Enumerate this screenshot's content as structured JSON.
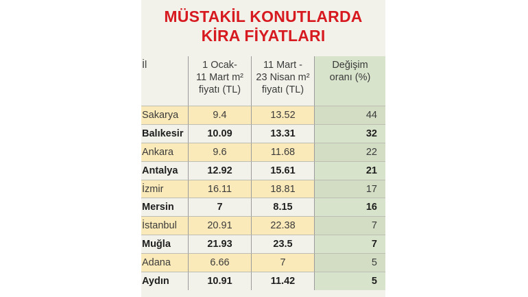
{
  "chart_data": {
    "type": "table",
    "title": [
      "MÜSTAKİL KONUTLARDA",
      "KİRA FİYATLARI"
    ],
    "columns": [
      {
        "label": "İl"
      },
      {
        "label": [
          "1 Ocak-",
          "11 Mart m²",
          "fiyatı (TL)"
        ]
      },
      {
        "label": [
          "11 Mart -",
          "23 Nisan m²",
          "fiyatı (TL)"
        ]
      },
      {
        "label": [
          "Değişim",
          "oranı (%)"
        ]
      }
    ],
    "rows": [
      {
        "il": "Sakarya",
        "c1": "9.4",
        "c2": "13.52",
        "c3": "44",
        "bold": false
      },
      {
        "il": "Balıkesir",
        "c1": "10.09",
        "c2": "13.31",
        "c3": "32",
        "bold": true
      },
      {
        "il": "Ankara",
        "c1": "9.6",
        "c2": "11.68",
        "c3": "22",
        "bold": false
      },
      {
        "il": "Antalya",
        "c1": "12.92",
        "c2": "15.61",
        "c3": "21",
        "bold": true
      },
      {
        "il": "İzmir",
        "c1": "16.11",
        "c2": "18.81",
        "c3": "17",
        "bold": false
      },
      {
        "il": "Mersin",
        "c1": "7",
        "c2": "8.15",
        "c3": "16",
        "bold": true
      },
      {
        "il": "İstanbul",
        "c1": "20.91",
        "c2": "22.38",
        "c3": "7",
        "bold": false
      },
      {
        "il": "Muğla",
        "c1": "21.93",
        "c2": "23.5",
        "c3": "7",
        "bold": true
      },
      {
        "il": "Adana",
        "c1": "6.66",
        "c2": "7",
        "c3": "5",
        "bold": false
      },
      {
        "il": "Aydın",
        "c1": "10.91",
        "c2": "11.42",
        "c3": "5",
        "bold": true
      }
    ],
    "colors": {
      "title": "#d71920",
      "row_highlight": "#fbeab9",
      "change_column": "#d8e3cb",
      "panel_background": "#f2f2ea"
    }
  }
}
